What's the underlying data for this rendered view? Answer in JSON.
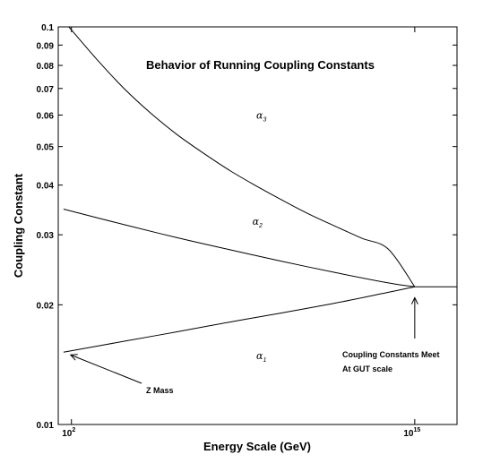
{
  "chart_data": {
    "type": "line",
    "title": "Behavior of Running Coupling Constants",
    "xlabel": "Energy Scale (GeV)",
    "ylabel": "Coupling Constant",
    "x_scale": "log10",
    "y_scale": "log",
    "xlim_log10": [
      1.5,
      16.6
    ],
    "ylim": [
      0.01,
      0.1
    ],
    "x_ticks": [
      {
        "base": "10",
        "exp": "2",
        "log10": 2
      },
      {
        "base": "10",
        "exp": "15",
        "log10": 15
      }
    ],
    "y_ticks": [
      {
        "label": "0.1",
        "value": 0.1
      },
      {
        "label": "0.09",
        "value": 0.09
      },
      {
        "label": "0.08",
        "value": 0.08
      },
      {
        "label": "0.07",
        "value": 0.07
      },
      {
        "label": "0.06",
        "value": 0.06
      },
      {
        "label": "0.05",
        "value": 0.05
      },
      {
        "label": "0.04",
        "value": 0.04
      },
      {
        "label": "0.03",
        "value": 0.03
      },
      {
        "label": "0.02",
        "value": 0.02
      },
      {
        "label": "0.01",
        "value": 0.01
      }
    ],
    "grid": false,
    "series": [
      {
        "symbol": "α",
        "sub": "3",
        "x_log10": [
          1.9,
          3,
          4,
          5,
          6,
          7,
          8,
          9,
          10,
          11,
          12,
          13,
          14,
          15
        ],
        "values": [
          0.1,
          0.0823,
          0.0699,
          0.0607,
          0.0536,
          0.0481,
          0.0435,
          0.0398,
          0.0366,
          0.0338,
          0.0315,
          0.0294,
          0.0276,
          0.0222
        ]
      },
      {
        "symbol": "α",
        "sub": "2",
        "x_log10": [
          1.7,
          4,
          6,
          8,
          10,
          12,
          14,
          15
        ],
        "values": [
          0.0348,
          0.0318,
          0.0295,
          0.0275,
          0.0257,
          0.0241,
          0.0227,
          0.0222
        ]
      },
      {
        "symbol": "α",
        "sub": "1",
        "x_log10": [
          1.7,
          4,
          6,
          8,
          10,
          12,
          14,
          15
        ],
        "values": [
          0.0152,
          0.0162,
          0.0171,
          0.0181,
          0.0191,
          0.0202,
          0.0215,
          0.0222
        ]
      },
      {
        "name": "",
        "x_log10": [
          15,
          16.6
        ],
        "values": [
          0.0222,
          0.0222
        ]
      }
    ],
    "annotations": [
      {
        "lines": [
          "Z Mass"
        ],
        "points_to": {
          "x_log10": 1.9,
          "value": 0.0152
        }
      },
      {
        "lines": [
          "Coupling Constants Meet",
          "At GUT scale"
        ],
        "points_to": {
          "x_log10": 15,
          "value": 0.0215
        }
      }
    ]
  }
}
